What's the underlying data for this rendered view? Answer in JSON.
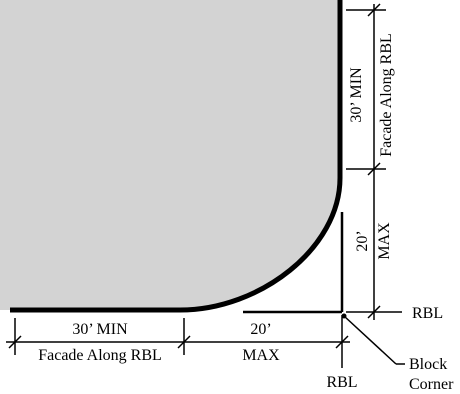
{
  "labels": {
    "bottom_min_top": "30’ MIN",
    "bottom_min_bottom": "Facade Along RBL",
    "bottom_max_top": "20’",
    "bottom_max_bottom": "MAX",
    "right_min_outer": "Facade Along RBL",
    "right_min_inner": "30’ MIN",
    "right_max_inner": "20’",
    "right_max_outer": "MAX",
    "rbl_right": "RBL",
    "rbl_bottom": "RBL",
    "block_corner_line1": "Block",
    "block_corner_line2": "Corner"
  },
  "colors": {
    "block_fill": "#d3d3d3",
    "ink": "#000000"
  }
}
